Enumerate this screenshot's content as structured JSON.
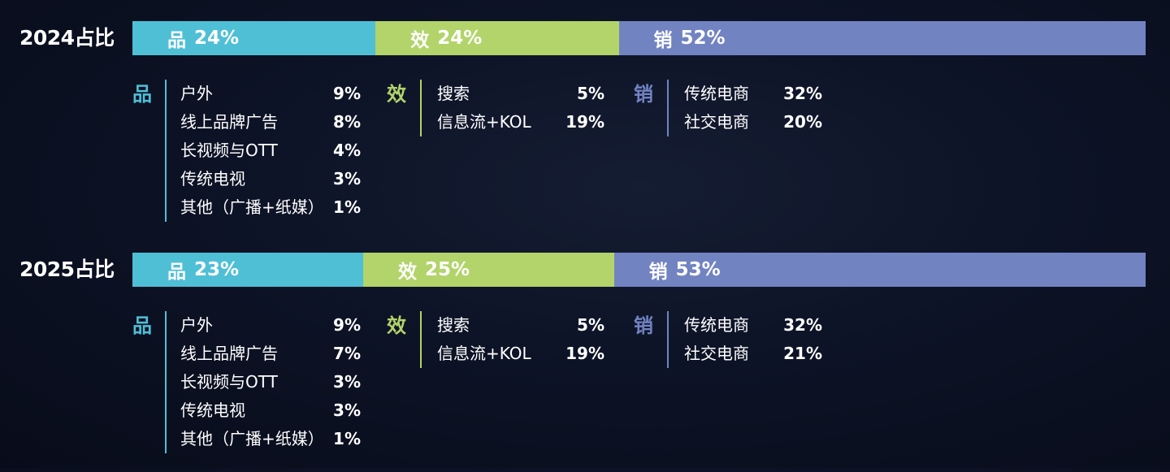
{
  "colors": {
    "pin": "#4fbfd6",
    "xiao": "#b2d46a",
    "xiao2": "#7283c2"
  },
  "chart_data": [
    {
      "type": "bar",
      "title": "2024占比",
      "segments": [
        {
          "icon": "品",
          "label": "24%",
          "value": 24,
          "color": "#4fbfd6"
        },
        {
          "icon": "效",
          "label": "24%",
          "value": 24,
          "color": "#b2d46a"
        },
        {
          "icon": "销",
          "label": "52%",
          "value": 52,
          "color": "#7283c2"
        }
      ],
      "groups": [
        {
          "icon": "品",
          "color": "#4fbfd6",
          "items": [
            {
              "label": "户外",
              "value": "9%"
            },
            {
              "label": "线上品牌广告",
              "value": "8%"
            },
            {
              "label": "长视频与OTT",
              "value": "4%"
            },
            {
              "label": "传统电视",
              "value": "3%"
            },
            {
              "label": "其他（广播+纸媒）",
              "value": "1%"
            }
          ]
        },
        {
          "icon": "效",
          "color": "#b2d46a",
          "items": [
            {
              "label": "搜索",
              "value": "5%"
            },
            {
              "label": "信息流+KOL",
              "value": "19%"
            }
          ]
        },
        {
          "icon": "销",
          "color": "#7283c2",
          "items": [
            {
              "label": "传统电商",
              "value": "32%"
            },
            {
              "label": "社交电商",
              "value": "20%"
            }
          ]
        }
      ]
    },
    {
      "type": "bar",
      "title": "2025占比",
      "segments": [
        {
          "icon": "品",
          "label": "23%",
          "value": 23,
          "color": "#4fbfd6"
        },
        {
          "icon": "效",
          "label": "25%",
          "value": 25,
          "color": "#b2d46a"
        },
        {
          "icon": "销",
          "label": "53%",
          "value": 53,
          "color": "#7283c2"
        }
      ],
      "groups": [
        {
          "icon": "品",
          "color": "#4fbfd6",
          "items": [
            {
              "label": "户外",
              "value": "9%"
            },
            {
              "label": "线上品牌广告",
              "value": "7%"
            },
            {
              "label": "长视频与OTT",
              "value": "3%"
            },
            {
              "label": "传统电视",
              "value": "3%"
            },
            {
              "label": "其他（广播+纸媒）",
              "value": "1%"
            }
          ]
        },
        {
          "icon": "效",
          "color": "#b2d46a",
          "items": [
            {
              "label": "搜索",
              "value": "5%"
            },
            {
              "label": "信息流+KOL",
              "value": "19%"
            }
          ]
        },
        {
          "icon": "销",
          "color": "#7283c2",
          "items": [
            {
              "label": "传统电商",
              "value": "32%"
            },
            {
              "label": "社交电商",
              "value": "21%"
            }
          ]
        }
      ]
    }
  ]
}
